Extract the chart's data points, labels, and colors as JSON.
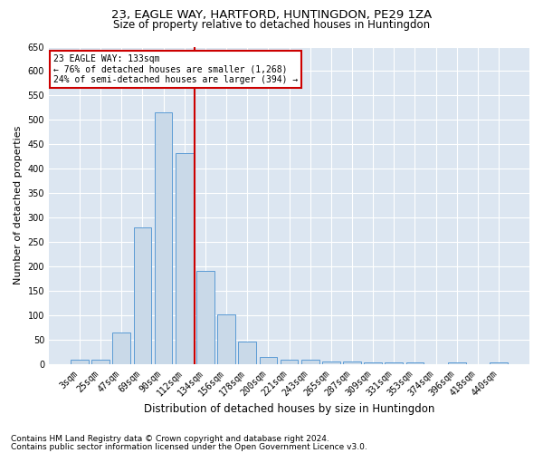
{
  "title1": "23, EAGLE WAY, HARTFORD, HUNTINGDON, PE29 1ZA",
  "title2": "Size of property relative to detached houses in Huntingdon",
  "xlabel": "Distribution of detached houses by size in Huntingdon",
  "ylabel": "Number of detached properties",
  "categories": [
    "3sqm",
    "25sqm",
    "47sqm",
    "69sqm",
    "90sqm",
    "112sqm",
    "134sqm",
    "156sqm",
    "178sqm",
    "200sqm",
    "221sqm",
    "243sqm",
    "265sqm",
    "287sqm",
    "309sqm",
    "331sqm",
    "353sqm",
    "374sqm",
    "396sqm",
    "418sqm",
    "440sqm"
  ],
  "values": [
    10,
    10,
    65,
    280,
    515,
    433,
    192,
    102,
    46,
    15,
    10,
    10,
    5,
    5,
    4,
    4,
    3,
    0,
    4,
    0,
    3
  ],
  "bar_color": "#c9d9e8",
  "bar_edge_color": "#5b9bd5",
  "vline_color": "#cc0000",
  "annotation_text": "23 EAGLE WAY: 133sqm\n← 76% of detached houses are smaller (1,268)\n24% of semi-detached houses are larger (394) →",
  "annotation_box_color": "#ffffff",
  "annotation_box_edge": "#cc0000",
  "ylim": [
    0,
    650
  ],
  "yticks": [
    0,
    50,
    100,
    150,
    200,
    250,
    300,
    350,
    400,
    450,
    500,
    550,
    600,
    650
  ],
  "footnote1": "Contains HM Land Registry data © Crown copyright and database right 2024.",
  "footnote2": "Contains public sector information licensed under the Open Government Licence v3.0.",
  "plot_bg_color": "#dce6f1",
  "title1_fontsize": 9.5,
  "title2_fontsize": 8.5,
  "xlabel_fontsize": 8.5,
  "ylabel_fontsize": 8,
  "tick_fontsize": 7,
  "annot_fontsize": 7,
  "footnote_fontsize": 6.5
}
